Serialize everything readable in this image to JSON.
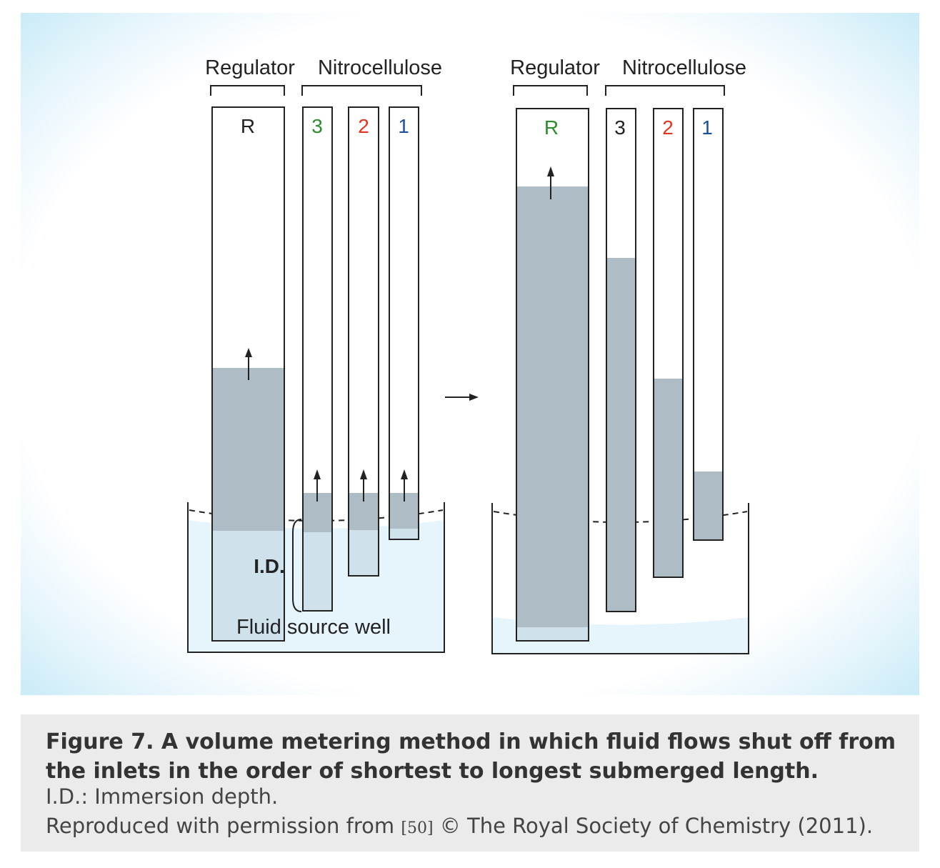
{
  "left_panel": {
    "regulator_label": "Regulator",
    "nitrocellulose_label": "Nitrocellulose",
    "strips": {
      "r": "R",
      "s3": "3",
      "s2": "2",
      "s1": "1"
    },
    "immersion_label": "I.D.",
    "well_label": "Fluid source well"
  },
  "right_panel": {
    "regulator_label": "Regulator",
    "nitrocellulose_label": "Nitrocellulose",
    "strips": {
      "r": "R",
      "s3": "3",
      "s2": "2",
      "s1": "1"
    }
  },
  "colors": {
    "fluid": "#aebcc6",
    "well_water": "#e6f4fb",
    "green": "#2e8b2e",
    "red": "#e5341f",
    "blue": "#1b4f9c",
    "black": "#222222"
  },
  "caption": {
    "title": "Figure 7. A volume metering method in which fluid flows shut off from the inlets in the order of shortest to longest submerged length.",
    "abbrev": "I.D.: Immersion depth.",
    "credit_prefix": "Reproduced with permission from",
    "credit_ref": "[50]",
    "credit_suffix": "© The Royal Society of Chemistry (2011)."
  }
}
